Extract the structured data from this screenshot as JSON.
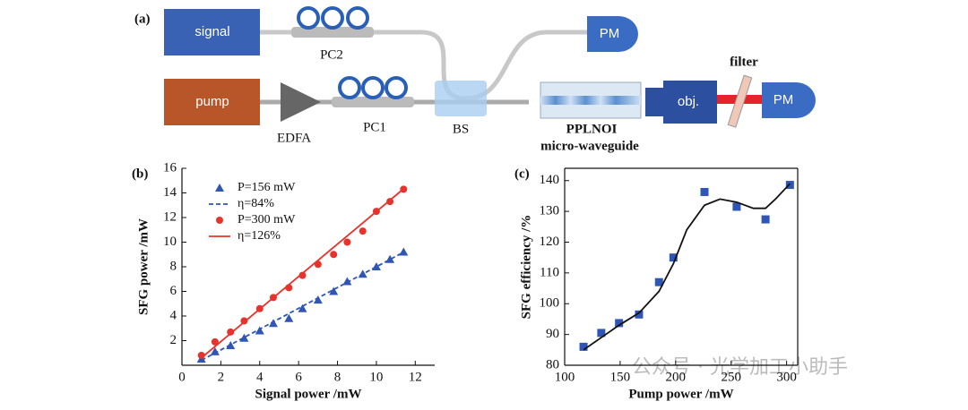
{
  "diagram": {
    "panel": "(a)",
    "signal": "signal",
    "pc2": "PC2",
    "pm_top": "PM",
    "pump": "pump",
    "edfa": "EDFA",
    "pc1": "PC1",
    "bs": "BS",
    "crystal": "PPLNOI",
    "crystal_sub": "micro-waveguide",
    "objective": "obj.",
    "filter": "filter",
    "pm_right": "PM"
  },
  "watermark": "公众号 · 光学加工小助手",
  "chart_data": [
    {
      "type": "scatter",
      "panel": "(b)",
      "xlabel": "Signal power /mW",
      "ylabel": "SFG power /mW",
      "xlim": [
        0,
        13
      ],
      "xticks": [
        0,
        2,
        4,
        6,
        8,
        10,
        12
      ],
      "ylim": [
        0,
        16
      ],
      "yticks": [
        2,
        4,
        6,
        8,
        10,
        12,
        14,
        16
      ],
      "box": false,
      "legend": "upper left",
      "series": [
        {
          "name": "P=156 mW",
          "color": "#2f55b5",
          "marker": "triangle",
          "x": [
            1.0,
            1.7,
            2.5,
            3.2,
            4.0,
            4.7,
            5.5,
            6.2,
            7.0,
            7.8,
            8.5,
            9.3,
            10.0,
            10.7,
            11.4
          ],
          "values": [
            0.5,
            1.1,
            1.6,
            2.2,
            2.8,
            3.4,
            3.8,
            4.6,
            5.3,
            6.0,
            6.8,
            7.4,
            8.0,
            8.6,
            9.2
          ]
        },
        {
          "name": "η=84%",
          "color": "#2f55b5",
          "marker": "none",
          "line": "dashed",
          "x": [
            1.0,
            11.3
          ],
          "values": [
            0.4,
            9.1
          ]
        },
        {
          "name": "P=300 mW",
          "color": "#e8322c",
          "marker": "circle",
          "x": [
            1.0,
            1.7,
            2.5,
            3.2,
            4.0,
            4.7,
            5.5,
            6.2,
            7.0,
            7.8,
            8.5,
            9.3,
            10.0,
            10.7,
            11.4
          ],
          "values": [
            0.8,
            1.9,
            2.7,
            3.6,
            4.6,
            5.5,
            6.3,
            7.3,
            8.2,
            9.0,
            10.0,
            10.9,
            12.5,
            13.3,
            14.3
          ]
        },
        {
          "name": "η=126%",
          "color": "#e8322c",
          "marker": "none",
          "line": "solid",
          "x": [
            1.0,
            11.3
          ],
          "values": [
            0.6,
            14.2
          ]
        }
      ]
    },
    {
      "type": "scatter",
      "panel": "(c)",
      "xlabel": "Pump power /mW",
      "ylabel": "SFG efficiency /%",
      "xlim": [
        100,
        310
      ],
      "xticks": [
        100,
        150,
        200,
        250,
        300
      ],
      "ylim": [
        80,
        144
      ],
      "yticks": [
        80,
        90,
        100,
        110,
        120,
        130,
        140
      ],
      "box": true,
      "series": [
        {
          "color": "#2f55b5",
          "marker": "square",
          "x": [
            117,
            133,
            149,
            167,
            185,
            198,
            226,
            255,
            281,
            303
          ],
          "values": [
            86,
            90.5,
            93.7,
            96.5,
            107,
            115,
            136.3,
            131.5,
            127.4,
            138.6
          ]
        },
        {
          "color": "#111111",
          "marker": "none",
          "line": "solid",
          "x": [
            117,
            133,
            149,
            167,
            185,
            198,
            210,
            226,
            240,
            255,
            270,
            281,
            290,
            303
          ],
          "values": [
            85,
            89,
            93,
            97,
            104,
            113,
            124,
            132,
            134,
            133,
            131,
            131,
            134,
            139
          ]
        }
      ]
    }
  ]
}
